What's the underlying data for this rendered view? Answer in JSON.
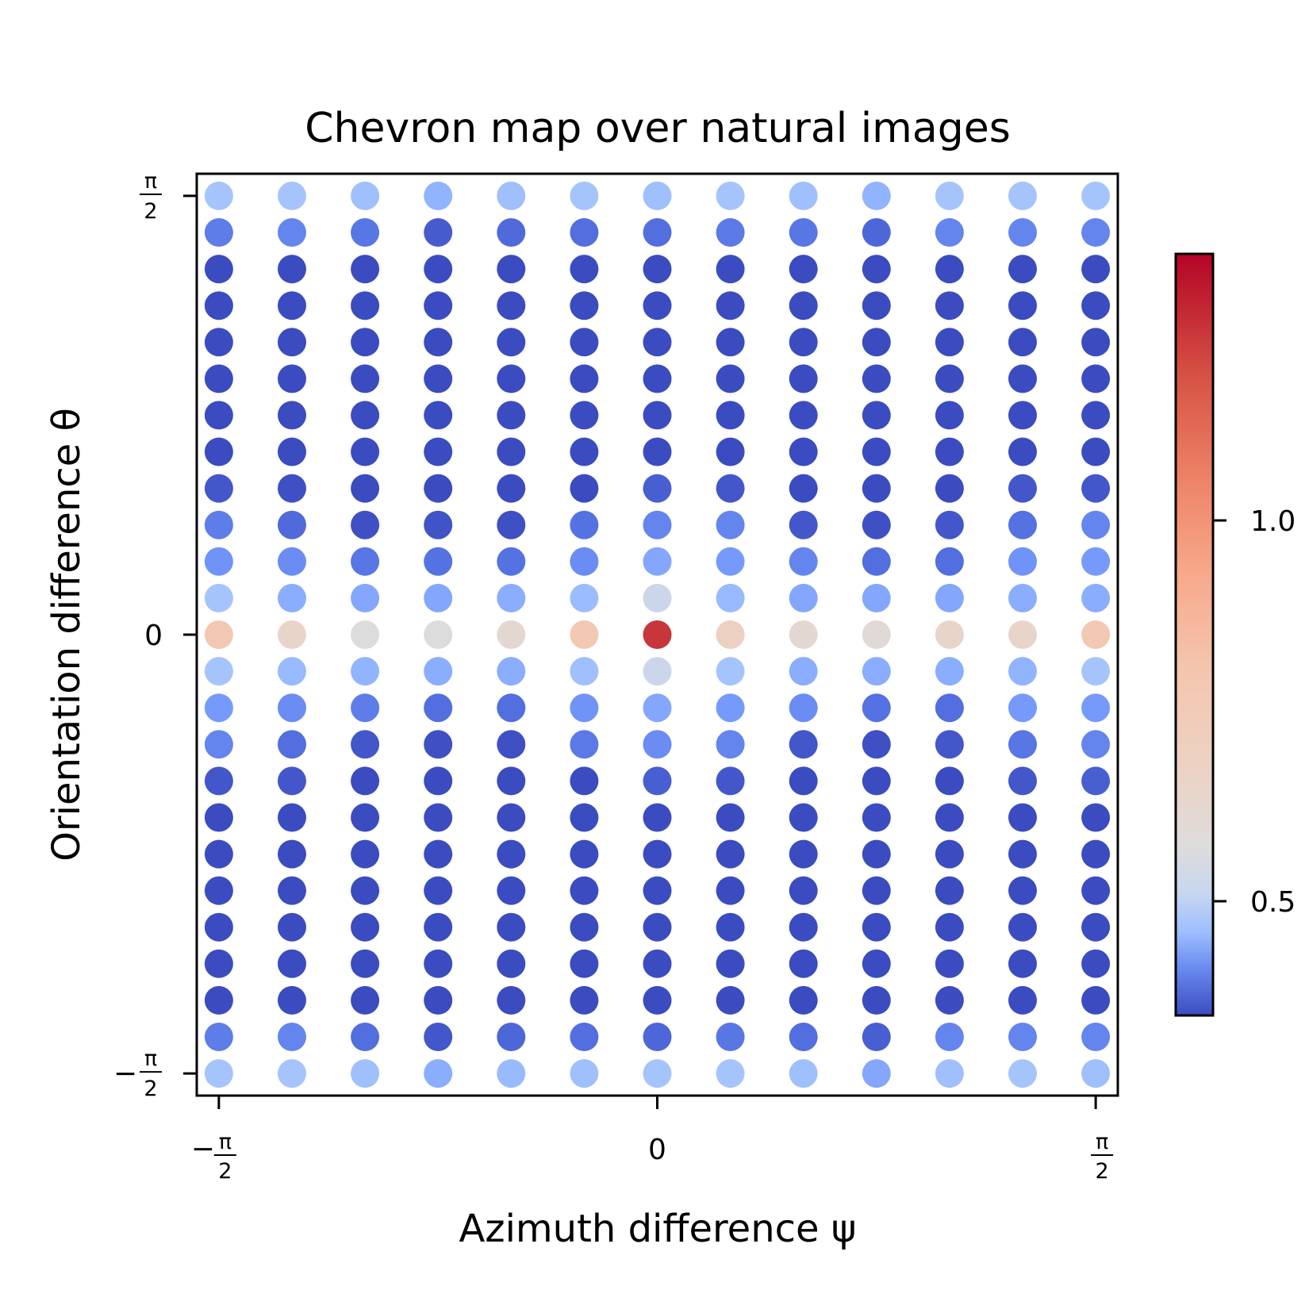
{
  "chart_data": {
    "type": "scatter",
    "title": "Chevron map over natural images",
    "xlabel": "Azimuth difference ψ",
    "ylabel": "Orientation difference θ",
    "xlim": [
      -1.65,
      1.65
    ],
    "ylim": [
      1.65,
      -1.65
    ],
    "x_ticks": [
      {
        "value": -1.5708,
        "sign": "−",
        "num": "π",
        "den": "2"
      },
      {
        "value": 0,
        "sign": "",
        "num": "0",
        "den": ""
      },
      {
        "value": 1.5708,
        "sign": "",
        "num": "π",
        "den": "2"
      }
    ],
    "y_ticks": [
      {
        "value": -1.5708,
        "sign": "−",
        "num": "π",
        "den": "2"
      },
      {
        "value": 0,
        "sign": "",
        "num": "0",
        "den": ""
      },
      {
        "value": 1.5708,
        "sign": "",
        "num": "π",
        "den": "2"
      }
    ],
    "x": [
      -1.5708,
      -1.309,
      -1.0472,
      -0.7854,
      -0.5236,
      -0.2618,
      0,
      0.2618,
      0.5236,
      0.7854,
      1.0472,
      1.309,
      1.5708
    ],
    "y": [
      -1.5708,
      -1.4399,
      -1.309,
      -1.1781,
      -1.0472,
      -0.9163,
      -0.7854,
      -0.6545,
      -0.5236,
      -0.3927,
      -0.2618,
      -0.1309,
      0,
      0.1309,
      0.2618,
      0.3927,
      0.5236,
      0.6545,
      0.7854,
      0.9163,
      1.0472,
      1.1781,
      1.309,
      1.4399,
      1.5708
    ],
    "values": [
      [
        0.7,
        0.7,
        0.68,
        0.62,
        0.66,
        0.68,
        0.7,
        0.7,
        0.68,
        0.6,
        0.68,
        0.7,
        0.68
      ],
      [
        0.48,
        0.5,
        0.44,
        0.38,
        0.42,
        0.44,
        0.42,
        0.46,
        0.44,
        0.4,
        0.5,
        0.5,
        0.5
      ],
      [
        0.28,
        0.22,
        0.24,
        0.17,
        0.14,
        0.12,
        0.25,
        0.2,
        0.27,
        0.22,
        0.25,
        0.3,
        0.3
      ],
      [
        0.24,
        0.18,
        0.16,
        0.12,
        0.12,
        0.11,
        0.18,
        0.14,
        0.17,
        0.15,
        0.18,
        0.22,
        0.24
      ],
      [
        0.2,
        0.16,
        0.1,
        0.07,
        0.11,
        0.05,
        0.14,
        0.12,
        0.13,
        0.12,
        0.16,
        0.18,
        0.22
      ],
      [
        0.2,
        0.13,
        0.08,
        0.06,
        0.08,
        0.07,
        0.12,
        0.08,
        0.12,
        0.12,
        0.14,
        0.18,
        0.2
      ],
      [
        0.23,
        0.24,
        0.1,
        0.13,
        0.17,
        0.09,
        0.18,
        0.22,
        0.08,
        0.11,
        0.2,
        0.18,
        0.23
      ],
      [
        0.28,
        0.3,
        0.23,
        0.2,
        0.2,
        0.28,
        0.28,
        0.28,
        0.2,
        0.22,
        0.24,
        0.28,
        0.3
      ],
      [
        0.38,
        0.38,
        0.34,
        0.33,
        0.34,
        0.34,
        0.4,
        0.38,
        0.33,
        0.32,
        0.33,
        0.38,
        0.4
      ],
      [
        0.5,
        0.44,
        0.38,
        0.36,
        0.36,
        0.47,
        0.52,
        0.5,
        0.38,
        0.36,
        0.38,
        0.46,
        0.5
      ],
      [
        0.56,
        0.52,
        0.48,
        0.44,
        0.44,
        0.54,
        0.6,
        0.56,
        0.52,
        0.45,
        0.44,
        0.56,
        0.56
      ],
      [
        0.7,
        0.66,
        0.64,
        0.62,
        0.62,
        0.68,
        0.8,
        0.7,
        0.62,
        0.62,
        0.62,
        0.64,
        0.7
      ],
      [
        0.96,
        0.9,
        0.85,
        0.85,
        0.88,
        0.96,
        1.28,
        0.92,
        0.88,
        0.87,
        0.9,
        0.9,
        0.96
      ],
      [
        0.7,
        0.62,
        0.6,
        0.6,
        0.62,
        0.67,
        0.8,
        0.66,
        0.6,
        0.6,
        0.6,
        0.62,
        0.62
      ],
      [
        0.54,
        0.52,
        0.46,
        0.45,
        0.45,
        0.52,
        0.6,
        0.56,
        0.5,
        0.44,
        0.44,
        0.54,
        0.56
      ],
      [
        0.48,
        0.43,
        0.36,
        0.37,
        0.36,
        0.45,
        0.5,
        0.5,
        0.38,
        0.36,
        0.38,
        0.45,
        0.5
      ],
      [
        0.38,
        0.36,
        0.28,
        0.28,
        0.3,
        0.34,
        0.4,
        0.38,
        0.28,
        0.3,
        0.33,
        0.38,
        0.38
      ],
      [
        0.27,
        0.3,
        0.17,
        0.18,
        0.2,
        0.22,
        0.28,
        0.26,
        0.17,
        0.2,
        0.24,
        0.3,
        0.3
      ],
      [
        0.22,
        0.25,
        0.1,
        0.12,
        0.15,
        0.09,
        0.16,
        0.22,
        0.08,
        0.12,
        0.2,
        0.2,
        0.24
      ],
      [
        0.18,
        0.14,
        0.09,
        0.07,
        0.07,
        0.07,
        0.1,
        0.08,
        0.12,
        0.12,
        0.12,
        0.16,
        0.2
      ],
      [
        0.2,
        0.15,
        0.1,
        0.09,
        0.09,
        0.07,
        0.14,
        0.12,
        0.14,
        0.12,
        0.13,
        0.18,
        0.22
      ],
      [
        0.24,
        0.18,
        0.14,
        0.16,
        0.14,
        0.14,
        0.18,
        0.14,
        0.18,
        0.17,
        0.18,
        0.22,
        0.26
      ],
      [
        0.3,
        0.26,
        0.26,
        0.2,
        0.16,
        0.16,
        0.3,
        0.18,
        0.3,
        0.25,
        0.23,
        0.32,
        0.32
      ],
      [
        0.48,
        0.5,
        0.46,
        0.39,
        0.43,
        0.44,
        0.44,
        0.47,
        0.46,
        0.42,
        0.5,
        0.5,
        0.5
      ],
      [
        0.7,
        0.7,
        0.68,
        0.64,
        0.68,
        0.7,
        0.68,
        0.7,
        0.68,
        0.64,
        0.7,
        0.7,
        0.7
      ]
    ],
    "colormap": "coolwarm",
    "vmin": 0.35,
    "vmax": 1.35,
    "colorbar_ticks": [
      {
        "value": 1.0,
        "label": "1.0"
      },
      {
        "value": 0.5,
        "label": "0.5"
      }
    ],
    "grid": false
  }
}
